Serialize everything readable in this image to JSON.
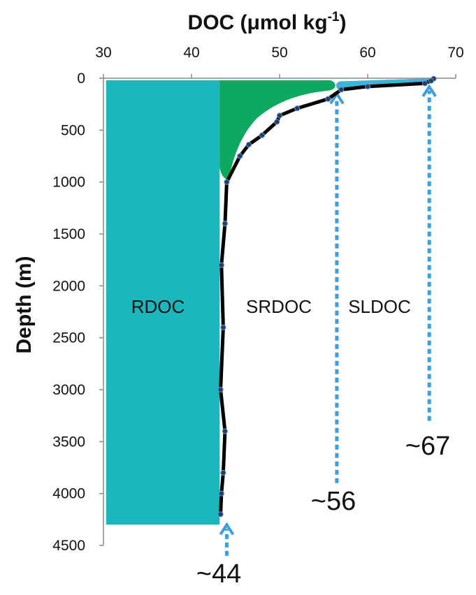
{
  "chart_data": {
    "type": "line",
    "xlabel": "DOC (μmol kg",
    "xlabel_superscript": "-1",
    "xlabel_close": ")",
    "ylabel": "Depth (m)",
    "xlim": [
      30,
      70
    ],
    "ylim": [
      0,
      4500
    ],
    "y_inverted": true,
    "x_axis_position": "top",
    "x_ticks": [
      "30",
      "40",
      "50",
      "60",
      "70"
    ],
    "y_ticks": [
      "0",
      "500",
      "1000",
      "1500",
      "2000",
      "2500",
      "3000",
      "3500",
      "4000",
      "4500"
    ],
    "series": [
      {
        "x": [
          67.5,
          67.2,
          66.5,
          60.0,
          57.0,
          55.5,
          52.0,
          50.0,
          49.7,
          48.0,
          46.5,
          45.5,
          44.0,
          43.8,
          43.4,
          43.6,
          43.3,
          43.8,
          43.6,
          43.4,
          43.3
        ],
        "y": [
          5,
          25,
          50,
          80,
          110,
          200,
          290,
          360,
          420,
          550,
          640,
          750,
          1000,
          1400,
          1800,
          2400,
          3000,
          3400,
          3800,
          4000,
          4200
        ]
      }
    ],
    "regions": [
      {
        "label": "RDOC",
        "color": "#1ab8bd"
      },
      {
        "label": "SRDOC",
        "color": "#0fa860"
      },
      {
        "label": "SLDOC",
        "color": "#3bb4d9"
      }
    ],
    "markers": [
      {
        "x": 44,
        "label": "~44",
        "depth_from": 4600,
        "depth_to": 4300
      },
      {
        "x": 56.5,
        "label": "~56",
        "depth_from": 3900,
        "depth_to": 150
      },
      {
        "x": 67,
        "label": "~67",
        "depth_from": 3300,
        "depth_to": 80
      }
    ],
    "colors": {
      "rdoc": "#1ab8bd",
      "srdoc": "#0fa860",
      "sldoc": "#3bb4d9",
      "line": "#000000",
      "marker_line": "#3a9fdc"
    }
  }
}
